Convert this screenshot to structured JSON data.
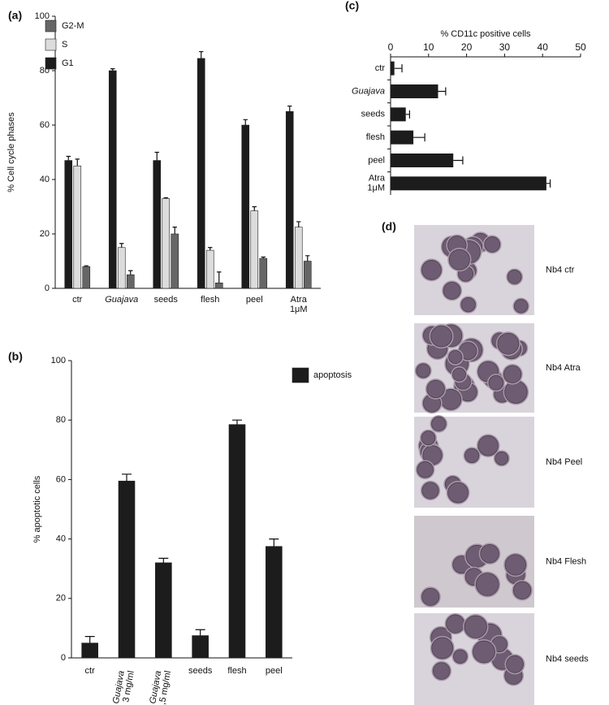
{
  "chart_data": [
    {
      "type": "bar",
      "label": "(a)",
      "y_label": "% Cell cycle phases",
      "categories": [
        "ctr",
        "Guajava",
        "seeds",
        "flesh",
        "peel",
        [
          "Atra",
          "1μM"
        ]
      ],
      "italic_categories": [
        1
      ],
      "series": [
        {
          "name": "G1",
          "color": "#1c1c1c",
          "values": [
            47,
            80,
            47,
            84.5,
            60,
            65
          ],
          "errors": [
            1.5,
            0.7,
            3,
            2.5,
            2,
            2
          ]
        },
        {
          "name": "S",
          "color": "#dcdcdc",
          "values": [
            45,
            15,
            33,
            14,
            28.5,
            22.5
          ],
          "errors": [
            2.5,
            1.5,
            0.3,
            1,
            1.5,
            2
          ]
        },
        {
          "name": "G2-M",
          "color": "#666666",
          "values": [
            8,
            5,
            20,
            2,
            11,
            10
          ],
          "errors": [
            0.3,
            1.5,
            2.5,
            4,
            0.5,
            2
          ]
        }
      ],
      "ylim": [
        0,
        100
      ],
      "yticks": [
        0,
        20,
        40,
        60,
        80,
        100
      ],
      "legend": "top-left"
    },
    {
      "type": "bar",
      "label": "(b)",
      "y_label": "% apoptotic cells",
      "categories": [
        "ctr",
        [
          "Guajava",
          "3 mg/ml"
        ],
        [
          "Guajava",
          "1,5 mg/ml"
        ],
        "seeds",
        "flesh",
        "peel"
      ],
      "italic_categories": [
        1,
        2
      ],
      "series": [
        {
          "name": "apoptosis",
          "color": "#1c1c1c",
          "values": [
            5,
            59.5,
            32,
            7.5,
            78.5,
            37.5
          ],
          "errors": [
            2.2,
            2.3,
            1.5,
            2,
            1.5,
            2.5
          ]
        }
      ],
      "ylim": [
        0,
        100
      ],
      "yticks": [
        0,
        20,
        40,
        60,
        80,
        100
      ],
      "legend": "top-right"
    },
    {
      "type": "hbar",
      "label": "(c)",
      "x_label": "% CD11c positive cells",
      "categories": [
        "ctr",
        "Guajava",
        "seeds",
        "flesh",
        "peel",
        [
          "Atra",
          "1μM"
        ]
      ],
      "italic_categories": [
        1
      ],
      "series": [
        {
          "color": "#1c1c1c",
          "values": [
            1,
            12.5,
            4,
            6,
            16.5,
            41
          ],
          "errors": [
            2,
            2,
            1,
            3,
            2.5,
            1
          ]
        }
      ],
      "xlim": [
        0,
        50
      ],
      "xticks": [
        0,
        10,
        20,
        30,
        40,
        50
      ]
    }
  ],
  "micrographs": {
    "label": "(d)",
    "captions": [
      "Nb4 ctr",
      "Nb4 Atra",
      "Nb4 Peel",
      "Nb4 Flesh",
      "Nb4 seeds"
    ]
  }
}
